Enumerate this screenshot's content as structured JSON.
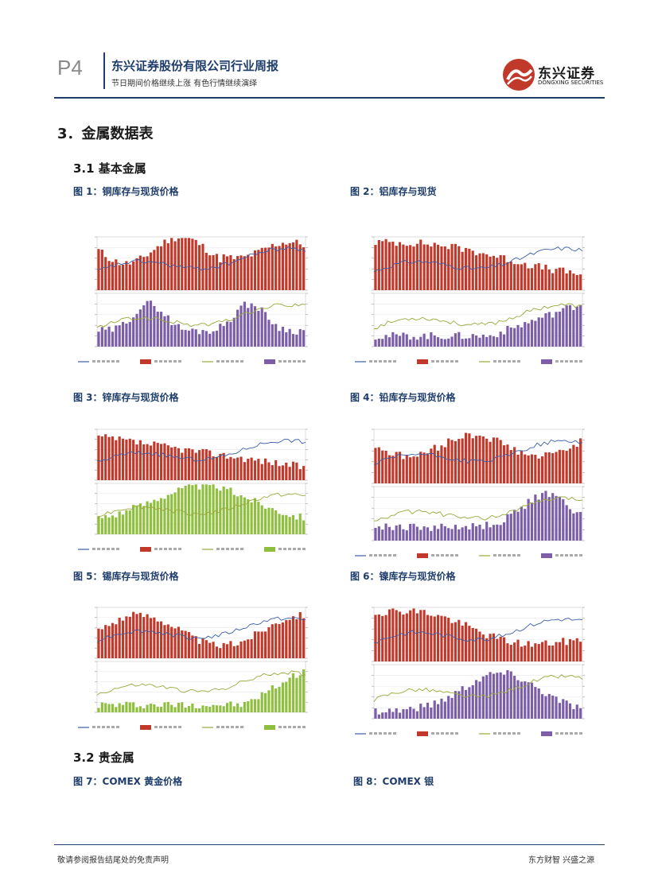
{
  "header": {
    "page_num": "P4",
    "title": "东兴证券股份有限公司行业周报",
    "subtitle": "节日期间价格继续上涨 有色行情继续演绎",
    "logo_cn": "东兴证券",
    "logo_en": "DONGXING SECURITIES"
  },
  "section": {
    "title": "3．金属数据表",
    "sub1": "3.1  基本金属",
    "sub2": "3.2  贵金属"
  },
  "figures": [
    {
      "caption": "图 1：铜库存与现货价格"
    },
    {
      "caption": "图 2：铝库存与现货"
    },
    {
      "caption": "图 3：锌库存与现货价格"
    },
    {
      "caption": "图 4：铅库存与现货价格"
    },
    {
      "caption": "图 5：锡库存与现货价格"
    },
    {
      "caption": "图 6：镍库存与现货价格"
    },
    {
      "caption": "图 7：COMEX 黄金价格"
    },
    {
      "caption": "图 8：COMEX 银"
    }
  ],
  "footer": {
    "left": "敬请参阅报告结尾处的免责声明",
    "right": "东方财智 兴盛之源"
  },
  "colors": {
    "brand": "#1e3d6b",
    "red": "#c0392b",
    "purple": "#7b5ea7",
    "green": "#8fbf3f",
    "line_blue": "#3a5ea8",
    "line_olive": "#9aa83a"
  }
}
